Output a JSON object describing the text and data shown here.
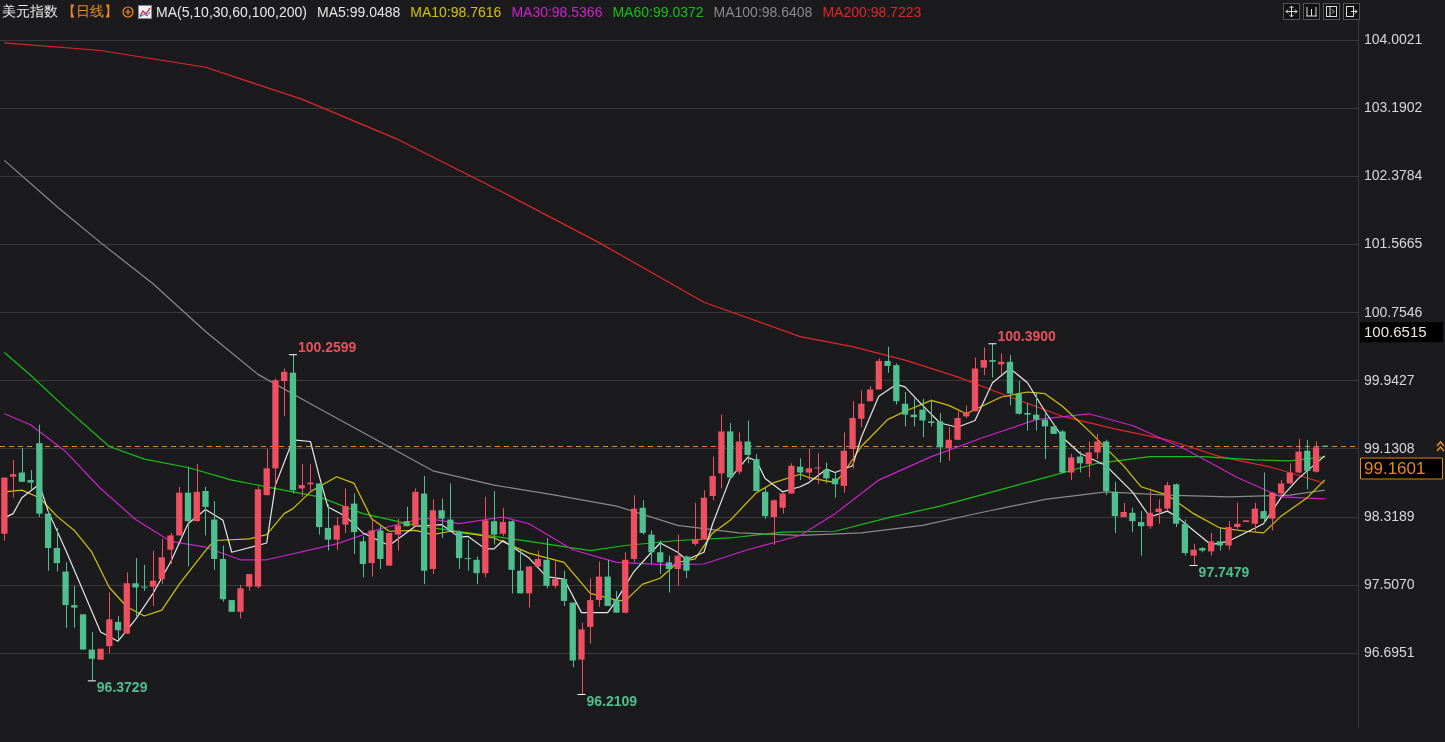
{
  "chart_data": {
    "type": "candlestick",
    "title": "美元指数",
    "subtitle": "【日线】",
    "legend_title": "MA(5,10,30,60,100,200)",
    "categories": [
      null,
      null,
      null,
      null,
      null,
      null,
      null,
      null,
      null,
      null,
      null,
      null,
      null,
      null,
      null,
      null,
      null,
      null,
      null,
      null,
      null,
      null,
      null,
      null,
      null,
      null,
      null,
      null,
      null,
      null,
      null,
      null,
      null,
      null,
      null,
      null,
      null,
      null,
      null,
      null,
      null,
      null,
      null,
      null,
      null,
      null,
      null,
      null,
      null,
      null,
      null,
      null,
      null,
      null,
      null,
      null,
      null,
      null,
      null,
      null,
      null,
      null,
      null,
      null,
      null,
      null,
      null,
      null,
      null,
      null,
      null,
      null,
      null,
      null,
      null,
      null,
      null,
      null,
      null,
      null,
      null,
      null,
      null,
      null,
      null,
      null,
      null,
      null,
      null,
      null,
      null,
      null,
      null,
      null,
      null,
      null,
      null,
      null,
      null,
      null,
      null,
      null,
      null,
      null,
      null,
      null,
      null,
      null,
      null,
      null,
      null,
      null,
      null,
      null,
      null,
      null,
      null,
      null,
      null,
      null,
      null,
      null,
      null,
      null,
      null,
      null,
      null,
      null,
      null,
      null,
      null,
      null,
      null,
      null,
      null,
      null,
      null,
      null,
      null,
      null,
      null,
      null,
      null,
      null,
      null,
      null,
      null,
      null,
      null,
      null,
      null,
      null
    ],
    "ohlc": [
      [
        98.12,
        98.79,
        98.04,
        98.79
      ],
      [
        98.8,
        99.0,
        98.55,
        98.83
      ],
      [
        98.85,
        99.14,
        98.74,
        98.74
      ],
      [
        98.76,
        98.88,
        98.64,
        98.73
      ],
      [
        99.2,
        99.42,
        98.32,
        98.36
      ],
      [
        98.36,
        98.39,
        97.68,
        97.95
      ],
      [
        97.95,
        98.19,
        97.67,
        97.77
      ],
      [
        97.67,
        97.78,
        97.0,
        97.27
      ],
      [
        97.27,
        97.5,
        97.0,
        97.24
      ],
      [
        97.16,
        97.16,
        96.74,
        96.74
      ],
      [
        96.74,
        96.95,
        96.3729,
        96.63
      ],
      [
        96.62,
        96.75,
        96.62,
        96.75
      ],
      [
        96.78,
        97.42,
        96.7,
        97.1
      ],
      [
        97.07,
        97.14,
        96.85,
        96.97
      ],
      [
        96.93,
        97.66,
        96.93,
        97.53
      ],
      [
        97.53,
        97.83,
        97.14,
        97.48
      ],
      [
        97.49,
        97.75,
        97.44,
        97.48
      ],
      [
        97.49,
        97.92,
        97.26,
        97.56
      ],
      [
        97.58,
        98.06,
        97.52,
        97.84
      ],
      [
        97.93,
        98.13,
        97.76,
        98.1
      ],
      [
        98.1,
        98.68,
        98.1,
        98.61
      ],
      [
        98.61,
        98.92,
        97.73,
        98.27
      ],
      [
        98.27,
        98.95,
        98.27,
        98.62
      ],
      [
        98.63,
        98.68,
        98.1,
        98.44
      ],
      [
        98.29,
        98.51,
        97.69,
        97.82
      ],
      [
        97.82,
        97.98,
        97.31,
        97.34
      ],
      [
        97.33,
        97.33,
        97.19,
        97.19
      ],
      [
        97.19,
        97.51,
        97.11,
        97.47
      ],
      [
        97.49,
        97.64,
        97.44,
        97.64
      ],
      [
        97.49,
        98.68,
        97.47,
        98.65
      ],
      [
        98.58,
        99.13,
        98.58,
        98.9
      ],
      [
        98.9,
        99.97,
        98.68,
        99.95
      ],
      [
        99.94,
        100.09,
        99.52,
        100.05
      ],
      [
        100.04,
        100.2599,
        98.6,
        98.64
      ],
      [
        98.66,
        98.95,
        98.56,
        98.7
      ],
      [
        98.71,
        98.95,
        98.62,
        98.73
      ],
      [
        98.72,
        98.72,
        98.11,
        98.2
      ],
      [
        98.19,
        98.47,
        97.92,
        98.05
      ],
      [
        98.05,
        98.32,
        97.93,
        98.22
      ],
      [
        98.23,
        98.66,
        98.13,
        98.45
      ],
      [
        98.48,
        98.6,
        97.88,
        98.14
      ],
      [
        98.03,
        98.09,
        97.6,
        97.76
      ],
      [
        97.77,
        98.29,
        97.61,
        98.16
      ],
      [
        98.16,
        98.21,
        97.7,
        97.82
      ],
      [
        97.74,
        98.13,
        97.74,
        98.13
      ],
      [
        98.11,
        98.3,
        97.92,
        98.22
      ],
      [
        98.27,
        98.44,
        98.21,
        98.21
      ],
      [
        98.21,
        98.66,
        98.21,
        98.62
      ],
      [
        98.6,
        98.81,
        97.52,
        97.68
      ],
      [
        97.7,
        98.53,
        97.64,
        98.4
      ],
      [
        98.4,
        98.54,
        98.07,
        98.3
      ],
      [
        98.29,
        98.72,
        98.16,
        98.16
      ],
      [
        98.14,
        98.16,
        97.7,
        97.83
      ],
      [
        97.83,
        98.05,
        97.68,
        97.82
      ],
      [
        97.81,
        97.85,
        97.52,
        97.65
      ],
      [
        97.65,
        98.56,
        97.6,
        98.28
      ],
      [
        98.27,
        98.63,
        97.99,
        98.11
      ],
      [
        98.12,
        98.43,
        98.09,
        98.26
      ],
      [
        98.27,
        98.28,
        97.41,
        97.69
      ],
      [
        97.68,
        97.93,
        97.41,
        97.41
      ],
      [
        97.41,
        97.73,
        97.24,
        97.73
      ],
      [
        97.73,
        97.92,
        97.73,
        97.82
      ],
      [
        97.81,
        98.07,
        97.47,
        97.5
      ],
      [
        97.5,
        97.79,
        97.47,
        97.58
      ],
      [
        97.58,
        97.68,
        97.26,
        97.32
      ],
      [
        97.3,
        97.3,
        96.53,
        96.61
      ],
      [
        96.62,
        97.06,
        96.2109,
        96.98
      ],
      [
        97.01,
        97.59,
        96.81,
        97.33
      ],
      [
        97.33,
        97.79,
        97.25,
        97.61
      ],
      [
        97.61,
        97.81,
        97.26,
        97.26
      ],
      [
        97.33,
        97.44,
        97.18,
        97.18
      ],
      [
        97.18,
        97.9,
        97.17,
        97.81
      ],
      [
        97.82,
        98.58,
        97.78,
        98.42
      ],
      [
        98.43,
        98.52,
        98.11,
        98.13
      ],
      [
        98.11,
        98.16,
        97.76,
        97.9
      ],
      [
        97.9,
        98.04,
        97.64,
        97.78
      ],
      [
        97.78,
        97.86,
        97.42,
        97.7
      ],
      [
        97.7,
        98.11,
        97.5,
        97.86
      ],
      [
        97.85,
        97.86,
        97.59,
        97.68
      ],
      [
        98.0,
        98.49,
        97.98,
        98.05
      ],
      [
        98.06,
        98.64,
        98.05,
        98.55
      ],
      [
        98.57,
        99.04,
        98.52,
        98.81
      ],
      [
        98.84,
        99.54,
        98.66,
        99.34
      ],
      [
        99.34,
        99.44,
        98.77,
        98.79
      ],
      [
        98.86,
        99.33,
        98.83,
        99.22
      ],
      [
        99.22,
        99.47,
        98.96,
        99.06
      ],
      [
        99.01,
        99.07,
        98.63,
        98.63
      ],
      [
        98.62,
        98.68,
        98.3,
        98.33
      ],
      [
        98.32,
        98.53,
        97.99,
        98.52
      ],
      [
        98.43,
        98.6,
        98.36,
        98.6
      ],
      [
        98.6,
        98.96,
        98.6,
        98.93
      ],
      [
        98.92,
        99.02,
        98.76,
        98.85
      ],
      [
        98.85,
        99.13,
        98.76,
        98.9
      ],
      [
        98.9,
        99.08,
        98.71,
        98.91
      ],
      [
        98.88,
        98.97,
        98.72,
        98.78
      ],
      [
        98.78,
        98.85,
        98.55,
        98.71
      ],
      [
        98.69,
        99.33,
        98.61,
        99.11
      ],
      [
        99.13,
        99.7,
        98.9,
        99.5
      ],
      [
        99.49,
        99.83,
        99.39,
        99.67
      ],
      [
        99.7,
        99.88,
        99.7,
        99.84
      ],
      [
        99.84,
        100.21,
        99.84,
        100.18
      ],
      [
        100.18,
        100.35,
        100.04,
        100.12
      ],
      [
        100.13,
        100.15,
        99.66,
        99.7
      ],
      [
        99.67,
        99.81,
        99.4,
        99.54
      ],
      [
        99.54,
        99.73,
        99.4,
        99.51
      ],
      [
        99.6,
        99.73,
        99.27,
        99.47
      ],
      [
        99.46,
        99.72,
        99.4,
        99.44
      ],
      [
        99.46,
        99.56,
        98.97,
        99.15
      ],
      [
        99.14,
        99.39,
        98.99,
        99.24
      ],
      [
        99.24,
        99.58,
        99.24,
        99.5
      ],
      [
        99.52,
        99.65,
        99.5,
        99.57
      ],
      [
        99.58,
        100.22,
        99.58,
        100.09
      ],
      [
        100.1,
        100.34,
        100.01,
        100.19
      ],
      [
        100.19,
        100.39,
        99.98,
        100.17
      ],
      [
        100.14,
        100.27,
        100.02,
        100.17
      ],
      [
        100.17,
        100.25,
        99.65,
        99.79
      ],
      [
        99.79,
        99.94,
        99.54,
        99.55
      ],
      [
        99.56,
        99.68,
        99.35,
        99.54
      ],
      [
        99.54,
        99.81,
        99.35,
        99.48
      ],
      [
        99.48,
        99.55,
        99.01,
        99.4
      ],
      [
        99.4,
        99.4,
        99.31,
        99.31
      ],
      [
        99.34,
        99.36,
        98.84,
        98.85
      ],
      [
        98.85,
        99.07,
        98.76,
        99.03
      ],
      [
        99.04,
        99.1,
        98.85,
        98.96
      ],
      [
        98.95,
        99.22,
        98.79,
        99.09
      ],
      [
        99.09,
        99.31,
        99.01,
        99.22
      ],
      [
        99.22,
        99.24,
        98.58,
        98.63
      ],
      [
        98.62,
        98.74,
        98.13,
        98.33
      ],
      [
        98.32,
        98.49,
        98.32,
        98.38
      ],
      [
        98.37,
        98.43,
        98.14,
        98.27
      ],
      [
        98.26,
        98.39,
        97.86,
        98.21
      ],
      [
        98.21,
        98.64,
        98.18,
        98.37
      ],
      [
        98.38,
        98.53,
        98.24,
        98.42
      ],
      [
        98.42,
        98.74,
        98.39,
        98.7
      ],
      [
        98.71,
        98.72,
        98.2,
        98.24
      ],
      [
        98.24,
        98.29,
        97.86,
        97.89
      ],
      [
        97.86,
        98.0,
        97.7479,
        97.93
      ],
      [
        97.95,
        97.96,
        97.9,
        97.92
      ],
      [
        97.91,
        98.13,
        97.86,
        98.03
      ],
      [
        98.03,
        98.18,
        97.92,
        97.98
      ],
      [
        97.98,
        98.27,
        97.93,
        98.2
      ],
      [
        98.2,
        98.49,
        98.18,
        98.24
      ],
      [
        98.26,
        98.28,
        98.26,
        98.28
      ],
      [
        98.24,
        98.49,
        98.13,
        98.42
      ],
      [
        98.39,
        98.85,
        98.24,
        98.3
      ],
      [
        98.3,
        98.61,
        98.16,
        98.61
      ],
      [
        98.6,
        98.76,
        98.55,
        98.72
      ],
      [
        98.72,
        98.96,
        98.71,
        98.85
      ],
      [
        98.85,
        99.25,
        98.84,
        99.1
      ],
      [
        99.11,
        99.24,
        98.65,
        98.87
      ],
      [
        98.86,
        99.22,
        98.85,
        99.15
      ],
      [
        99.17,
        99.17,
        99.16,
        99.1601
      ]
    ],
    "series": [
      {
        "type": "line",
        "name": "MA5:99.0488",
        "color": "#e6e6e6",
        "values": [
          98.31,
          98.36,
          98.55,
          null,
          98.71,
          98.39,
          null,
          97.93,
          null,
          97.44,
          null,
          96.95,
          null,
          96.84,
          null,
          97.1,
          null,
          97.41,
          null,
          97.78,
          null,
          98.24,
          null,
          98.41,
          null,
          98.28,
          97.9,
          null,
          null,
          null,
          98.01,
          98.7,
          null,
          99.24,
          null,
          99.22,
          98.81,
          98.44,
          null,
          98.33,
          null,
          98.13,
          null,
          null,
          97.98,
          null,
          null,
          98.21,
          null,
          null,
          98.23,
          null,
          98.08,
          98.09,
          null,
          97.94,
          97.94,
          98.04,
          null,
          null,
          97.83,
          null,
          97.61,
          null,
          97.58,
          null,
          97.18,
          null,
          null,
          97.18,
          97.33,
          null,
          97.67,
          null,
          97.9,
          98.01,
          null,
          97.9,
          97.81,
          null,
          97.9,
          98.24,
          null,
          98.78,
          null,
          99.03,
          98.99,
          98.78,
          null,
          98.62,
          null,
          98.68,
          98.73,
          null,
          98.89,
          98.85,
          null,
          98.93,
          99.27,
          null,
          99.76,
          null,
          99.9,
          99.87,
          null,
          99.65,
          null,
          99.44,
          null,
          99.39,
          null,
          99.47,
          null,
          99.92,
          null,
          100.09,
          null,
          99.92,
          null,
          99.58,
          null,
          99.27,
          null,
          99.08,
          null,
          null,
          98.93,
          null,
          null,
          98.62,
          null,
          98.32,
          null,
          98.39,
          98.33,
          null,
          98.16,
          null,
          97.99,
          null,
          98.03,
          null,
          null,
          null,
          98.24,
          null,
          98.55,
          null,
          98.78,
          null,
          null,
          99.0488
        ]
      },
      {
        "type": "line",
        "name": "MA10:98.7616",
        "color": "#d2c300",
        "values": [
          98.62,
          null,
          98.64,
          null,
          98.55,
          null,
          98.33,
          null,
          98.16,
          null,
          97.9,
          null,
          97.48,
          null,
          97.25,
          null,
          97.14,
          null,
          97.21,
          null,
          97.52,
          null,
          null,
          97.92,
          98.04,
          null,
          null,
          null,
          98.06,
          null,
          98.11,
          null,
          98.36,
          98.42,
          null,
          98.62,
          null,
          null,
          98.8,
          null,
          98.72,
          null,
          98.3,
          null,
          98.15,
          null,
          null,
          98.16,
          null,
          98.11,
          null,
          98.15,
          null,
          null,
          98.11,
          null,
          98.07,
          null,
          null,
          null,
          97.89,
          null,
          null,
          null,
          97.78,
          null,
          null,
          97.41,
          null,
          null,
          97.33,
          97.32,
          null,
          97.52,
          null,
          97.59,
          null,
          97.78,
          null,
          97.82,
          null,
          98.13,
          null,
          98.28,
          null,
          null,
          98.61,
          null,
          98.73,
          null,
          null,
          98.83,
          98.79,
          null,
          null,
          98.73,
          98.85,
          null,
          99.16,
          null,
          null,
          99.48,
          null,
          99.58,
          null,
          null,
          99.71,
          null,
          99.65,
          null,
          99.55,
          null,
          null,
          null,
          99.75,
          null,
          null,
          99.81,
          null,
          99.79,
          null,
          99.64,
          null,
          null,
          99.35,
          null,
          null,
          null,
          98.93,
          null,
          98.68,
          null,
          null,
          98.58,
          null,
          null,
          98.36,
          null,
          null,
          98.19,
          null,
          null,
          98.15,
          null,
          98.13,
          null,
          98.33,
          null,
          null,
          98.55,
          null,
          98.7616
        ]
      },
      {
        "type": "line",
        "name": "MA30:98.5366",
        "color": "#cc22cc",
        "values": [
          99.55,
          null,
          null,
          99.42,
          null,
          null,
          null,
          99.1,
          null,
          null,
          null,
          98.66,
          null,
          null,
          null,
          98.29,
          null,
          null,
          null,
          98.03,
          null,
          null,
          null,
          97.96,
          null,
          null,
          null,
          97.81,
          null,
          null,
          97.81,
          null,
          null,
          null,
          null,
          null,
          null,
          null,
          98.0,
          null,
          null,
          null,
          null,
          98.18,
          null,
          null,
          null,
          null,
          98.31,
          null,
          null,
          null,
          98.24,
          null,
          null,
          null,
          null,
          98.32,
          null,
          null,
          98.24,
          null,
          null,
          null,
          null,
          97.93,
          null,
          null,
          null,
          null,
          97.78,
          null,
          null,
          null,
          null,
          null,
          97.75,
          null,
          null,
          null,
          97.76,
          null,
          null,
          null,
          null,
          97.93,
          null,
          null,
          null,
          null,
          null,
          98.1,
          null,
          null,
          null,
          98.36,
          null,
          null,
          null,
          null,
          98.76,
          null,
          null,
          null,
          null,
          null,
          99.04,
          null,
          null,
          null,
          null,
          null,
          99.27,
          null,
          null,
          null,
          null,
          null,
          99.48,
          null,
          null,
          null,
          null,
          null,
          99.55,
          null,
          null,
          null,
          null,
          99.41,
          null,
          null,
          null,
          null,
          null,
          99.13,
          null,
          null,
          null,
          null,
          null,
          98.79,
          null,
          null,
          null,
          null,
          98.56,
          null,
          null,
          null,
          null,
          98.5366
        ]
      },
      {
        "type": "line",
        "name": "MA60:99.0372",
        "color": "#16c016",
        "values": [
          100.28,
          null,
          null,
          100.01,
          null,
          null,
          null,
          99.62,
          null,
          null,
          null,
          null,
          99.16,
          null,
          null,
          null,
          99.01,
          null,
          null,
          null,
          null,
          98.91,
          null,
          null,
          null,
          null,
          98.76,
          null,
          null,
          null,
          98.68,
          null,
          null,
          null,
          null,
          null,
          98.56,
          null,
          null,
          null,
          null,
          98.36,
          null,
          null,
          null,
          null,
          null,
          98.22,
          null,
          null,
          null,
          null,
          null,
          null,
          null,
          null,
          null,
          null,
          null,
          null,
          98.03,
          null,
          null,
          null,
          null,
          null,
          null,
          97.92,
          null,
          null,
          null,
          97.98,
          null,
          null,
          null,
          null,
          null,
          98.04,
          null,
          null,
          null,
          null,
          null,
          98.07,
          null,
          null,
          null,
          null,
          null,
          98.14,
          null,
          null,
          null,
          null,
          null,
          98.15,
          null,
          null,
          null,
          null,
          null,
          98.31,
          null,
          null,
          null,
          null,
          null,
          98.45,
          null,
          null,
          null,
          null,
          null,
          98.62,
          null,
          null,
          null,
          null,
          null,
          98.79,
          null,
          null,
          null,
          null,
          null,
          98.96,
          null,
          null,
          null,
          null,
          null,
          99.04,
          null,
          null,
          null,
          null,
          null,
          99.04,
          null,
          null,
          null,
          null,
          null,
          99.0,
          null,
          null,
          null,
          98.99,
          null,
          null,
          null,
          99.0372
        ]
      },
      {
        "type": "line",
        "name": "MA100:98.6408",
        "color": "#8a8a8a",
        "values": [
          102.57,
          null,
          null,
          null,
          null,
          null,
          102.02,
          null,
          null,
          null,
          null,
          101.59,
          null,
          null,
          null,
          null,
          null,
          101.1,
          null,
          null,
          null,
          null,
          null,
          100.53,
          null,
          null,
          null,
          null,
          null,
          100.02,
          null,
          null,
          null,
          null,
          null,
          99.67,
          null,
          null,
          null,
          null,
          null,
          null,
          99.27,
          null,
          null,
          null,
          null,
          null,
          null,
          98.87,
          null,
          null,
          null,
          null,
          null,
          null,
          98.7,
          null,
          null,
          null,
          null,
          null,
          null,
          98.58,
          null,
          null,
          null,
          null,
          null,
          null,
          98.45,
          null,
          null,
          null,
          null,
          null,
          null,
          98.22,
          null,
          null,
          null,
          null,
          null,
          null,
          98.13,
          null,
          null,
          null,
          null,
          null,
          null,
          98.1,
          null,
          null,
          null,
          null,
          null,
          null,
          98.13,
          null,
          null,
          null,
          null,
          null,
          null,
          98.22,
          null,
          null,
          null,
          null,
          null,
          null,
          98.38,
          null,
          null,
          null,
          null,
          null,
          null,
          98.53,
          null,
          null,
          null,
          null,
          null,
          null,
          98.62,
          null,
          null,
          null,
          null,
          null,
          null,
          98.58,
          null,
          null,
          null,
          null,
          null,
          null,
          98.56,
          null,
          null,
          null,
          null,
          null,
          null,
          98.58,
          null,
          null,
          null,
          98.6408
        ]
      },
      {
        "type": "line",
        "name": "MA200:98.7223",
        "color": "#e0262b",
        "values": [
          103.97,
          null,
          null,
          null,
          null,
          null,
          null,
          null,
          null,
          null,
          null,
          103.88,
          null,
          null,
          null,
          null,
          null,
          null,
          null,
          null,
          null,
          null,
          null,
          103.68,
          null,
          null,
          null,
          null,
          null,
          null,
          null,
          null,
          null,
          null,
          103.3,
          null,
          null,
          null,
          null,
          null,
          null,
          null,
          null,
          null,
          null,
          102.82,
          null,
          null,
          null,
          null,
          null,
          null,
          null,
          null,
          null,
          null,
          null,
          102.19,
          null,
          null,
          null,
          null,
          null,
          null,
          null,
          null,
          null,
          null,
          101.59,
          null,
          null,
          null,
          null,
          null,
          null,
          null,
          null,
          null,
          null,
          null,
          100.88,
          null,
          null,
          null,
          null,
          null,
          null,
          null,
          null,
          null,
          null,
          100.47,
          null,
          null,
          null,
          null,
          null,
          100.35,
          null,
          null,
          null,
          null,
          null,
          100.19,
          null,
          null,
          null,
          null,
          null,
          99.99,
          null,
          null,
          null,
          null,
          null,
          99.75,
          null,
          null,
          null,
          null,
          null,
          99.52,
          null,
          null,
          null,
          null,
          null,
          99.37,
          null,
          null,
          null,
          null,
          null,
          99.24,
          null,
          null,
          null,
          null,
          null,
          99.04,
          null,
          null,
          null,
          null,
          null,
          98.91,
          null,
          null,
          null,
          null,
          null,
          98.7223
        ]
      }
    ],
    "ylim": [
      95.81,
      104.31
    ],
    "yticks": [
      96.6951,
      {
        "value": 97.507,
        "label": "97.5070"
      },
      98.3189,
      99.1308,
      99.9427,
      100.7546,
      101.5665,
      102.3784,
      103.1902,
      104.0021
    ],
    "tick_labels": "y",
    "grid": "y",
    "marker": "none",
    "line_style": "solid",
    "ref_lines": [
      {
        "axis": "y",
        "value": 99.1601,
        "label": "99.1601",
        "color": "#e8891c",
        "line_style": "dashed"
      }
    ],
    "annotations": [
      "100.2599",
      "96.3729",
      "96.2109",
      "100.3900",
      "97.7479",
      "100.6515"
    ]
  }
}
